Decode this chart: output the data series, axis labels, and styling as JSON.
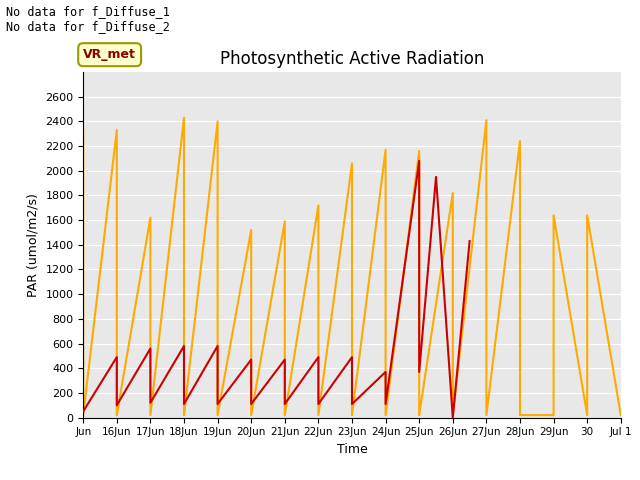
{
  "title": "Photosynthetic Active Radiation",
  "xlabel": "Time",
  "ylabel": "PAR (umol/m2/s)",
  "annotation_top": "No data for f_Diffuse_1\nNo data for f_Diffuse_2",
  "legend_label_box": "VR_met",
  "background_color": "#e8e8e8",
  "ylim": [
    0,
    2800
  ],
  "yticks": [
    0,
    200,
    400,
    600,
    800,
    1000,
    1200,
    1400,
    1600,
    1800,
    2000,
    2200,
    2400,
    2600
  ],
  "x_tick_labels": [
    "Jun",
    "16Jun",
    "17Jun",
    "18Jun",
    "19Jun",
    "20Jun",
    "21Jun",
    "22Jun",
    "23Jun",
    "24Jun",
    "25Jun",
    "26Jun",
    "27Jun",
    "28Jun",
    "29Jun",
    "30",
    "Jul 1"
  ],
  "par_in_color": "#cc0000",
  "par_out_color": "#ffaa00",
  "par_in_x": [
    15,
    16,
    16,
    17,
    17,
    18,
    18,
    19,
    19,
    20,
    20,
    21,
    21,
    22,
    22,
    23,
    23,
    24,
    24,
    25,
    25,
    25.5,
    26,
    26.5
  ],
  "par_in_y": [
    50,
    490,
    100,
    560,
    120,
    580,
    110,
    580,
    110,
    470,
    110,
    470,
    110,
    490,
    110,
    490,
    110,
    370,
    110,
    2080,
    370,
    1950,
    0,
    1430
  ],
  "par_out_x": [
    15,
    15,
    16,
    16,
    17,
    17,
    18,
    18,
    19,
    19,
    20,
    20,
    21,
    21,
    22,
    22,
    23,
    23,
    24,
    24,
    25,
    25,
    26,
    26,
    26,
    27,
    27,
    28,
    28,
    29,
    29,
    30,
    30,
    31
  ],
  "par_out_y": [
    2330,
    20,
    2330,
    20,
    1620,
    20,
    2430,
    20,
    2400,
    20,
    1520,
    20,
    1590,
    20,
    1720,
    20,
    2060,
    20,
    2170,
    20,
    2160,
    20,
    1820,
    1420,
    20,
    2410,
    20,
    2240,
    20,
    20,
    1640,
    20,
    1640,
    20
  ]
}
